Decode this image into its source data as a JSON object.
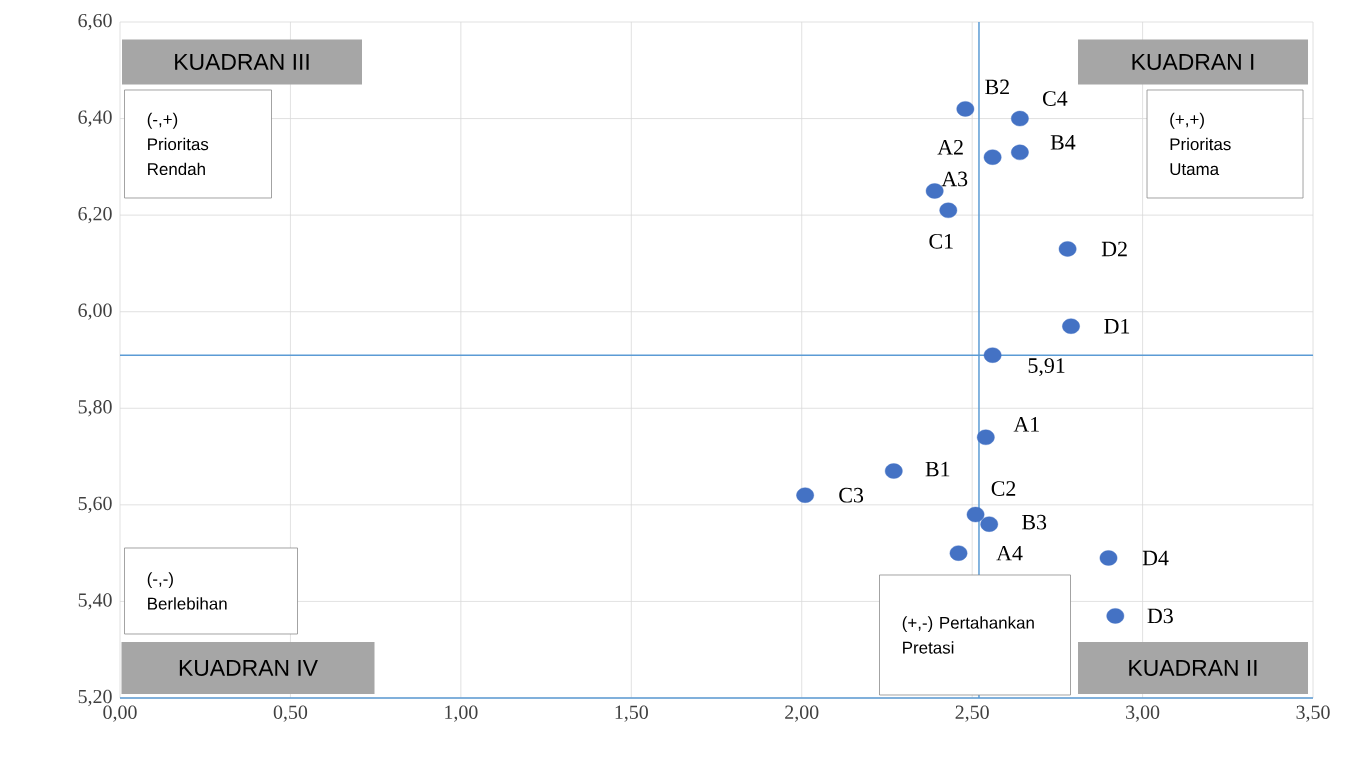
{
  "chart_data": {
    "type": "scatter",
    "marker": "circle",
    "grid": true,
    "x": [
      2.48,
      2.64,
      2.56,
      2.64,
      2.39,
      2.43,
      2.78,
      2.79,
      2.56,
      2.54,
      2.27,
      2.01,
      2.51,
      2.55,
      2.46,
      2.9,
      2.92
    ],
    "series": [
      {
        "color": "#4472c4",
        "values": [
          6.42,
          6.4,
          6.32,
          6.33,
          6.25,
          6.21,
          6.13,
          5.97,
          5.91,
          5.74,
          5.67,
          5.62,
          5.58,
          5.56,
          5.5,
          5.49,
          5.37
        ]
      }
    ],
    "xlim": [
      0,
      3.5
    ],
    "ylim": [
      5.2,
      6.6
    ],
    "xticks": [
      {
        "value": 0,
        "label": "0,00"
      },
      {
        "value": 0.5,
        "label": "0,50"
      },
      {
        "value": 1,
        "label": "1,00"
      },
      {
        "value": 1.5,
        "label": "1,50"
      },
      {
        "value": 2,
        "label": "2,00"
      },
      {
        "value": 2.5,
        "label": "2,50"
      },
      {
        "value": 3,
        "label": "3,00"
      },
      {
        "value": 3.5,
        "label": "3,50"
      }
    ],
    "yticks": [
      {
        "value": 5.2,
        "label": "5,20"
      },
      {
        "value": 5.4,
        "label": "5,40"
      },
      {
        "value": 5.6,
        "label": "5,60"
      },
      {
        "value": 5.8,
        "label": "5,80"
      },
      {
        "value": 6.0,
        "label": "6,00"
      },
      {
        "value": 6.2,
        "label": "6,20"
      },
      {
        "value": 6.4,
        "label": "6,40"
      },
      {
        "value": 6.6,
        "label": "6,60"
      }
    ],
    "ref_lines": [
      {
        "axis": "x",
        "value": 2.52,
        "color": "#5b9bd5"
      },
      {
        "axis": "y",
        "value": 5.91,
        "color": "#5b9bd5"
      }
    ],
    "annotations": [
      "KUADRAN I",
      "KUADRAN II",
      "KUADRAN III",
      "KUADRAN IV",
      "(+,+) Prioritas Utama",
      "(+,-) Pertahankan Pretasi",
      "(-,+) Prioritas Rendah",
      "(-,-) Berlebihan",
      {
        "text": "B2",
        "x": 2.48,
        "y": 6.42
      },
      {
        "text": "C4",
        "x": 2.64,
        "y": 6.4
      },
      {
        "text": "A2",
        "x": 2.56,
        "y": 6.32
      },
      {
        "text": "B4",
        "x": 2.64,
        "y": 6.33
      },
      {
        "text": "A3",
        "x": 2.39,
        "y": 6.25
      },
      {
        "text": "C1",
        "x": 2.43,
        "y": 6.21
      },
      {
        "text": "D2",
        "x": 2.78,
        "y": 6.13
      },
      {
        "text": "D1",
        "x": 2.79,
        "y": 5.97
      },
      {
        "text": "5,91",
        "x": 2.56,
        "y": 5.91
      },
      {
        "text": "A1",
        "x": 2.54,
        "y": 5.74
      },
      {
        "text": "B1",
        "x": 2.27,
        "y": 5.67
      },
      {
        "text": "C3",
        "x": 2.01,
        "y": 5.62
      },
      {
        "text": "C2",
        "x": 2.51,
        "y": 5.58
      },
      {
        "text": "B3",
        "x": 2.55,
        "y": 5.56
      },
      {
        "text": "A4",
        "x": 2.46,
        "y": 5.5
      },
      {
        "text": "D4",
        "x": 2.9,
        "y": 5.49
      },
      {
        "text": "D3",
        "x": 2.92,
        "y": 5.37
      }
    ]
  }
}
